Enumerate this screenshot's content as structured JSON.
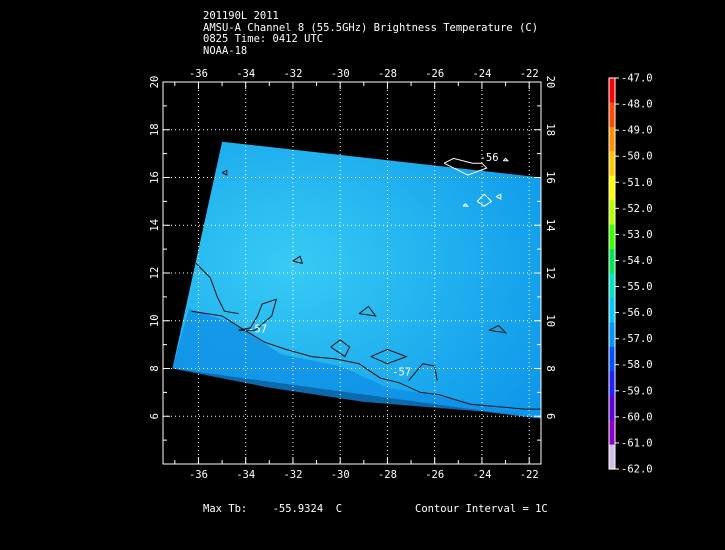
{
  "header": {
    "line1": "201190L 2011",
    "line2": "AMSU-A Channel 8 (55.5GHz) Brightness Temperature (C)",
    "line3": "0825 Time: 0412 UTC",
    "line4": "NOAA-18"
  },
  "footer": {
    "max_label": "Max Tb:",
    "max_value": "-55.9324",
    "max_unit": "C",
    "contour_interval": "Contour Interval = 1C"
  },
  "chart_data": {
    "type": "heatmap",
    "title": "AMSU-A Channel 8 (55.5GHz) Brightness Temperature (C)",
    "xlabel": "",
    "ylabel": "",
    "xlim": [
      -37.5,
      -21.5
    ],
    "ylim": [
      4,
      20
    ],
    "x_ticks": [
      -36,
      -34,
      -32,
      -30,
      -28,
      -26,
      -24,
      -22
    ],
    "y_ticks": [
      6,
      8,
      10,
      12,
      14,
      16,
      18,
      20
    ],
    "swath_corners_lonlat": [
      [
        -35,
        17.5
      ],
      [
        -21.5,
        16.0
      ],
      [
        -21.5,
        5.9
      ],
      [
        -37.1,
        8.0
      ]
    ],
    "dominant_value_C": -56.3,
    "max_tb_C": -55.9324,
    "contour_interval_C": 1,
    "contour_labels": [
      {
        "text": "-57",
        "lon": -33.9,
        "lat": 9.5
      },
      {
        "text": "-57",
        "lon": -27.8,
        "lat": 7.7
      },
      {
        "text": "-56",
        "lon": -24.1,
        "lat": 16.7
      }
    ],
    "colorbar": {
      "min": -62.0,
      "max": -47.0,
      "ticks": [
        "-47.0",
        "-48.0",
        "-49.0",
        "-50.0",
        "-51.0",
        "-52.0",
        "-53.0",
        "-54.0",
        "-55.0",
        "-56.0",
        "-57.0",
        "-58.0",
        "-59.0",
        "-60.0",
        "-61.0",
        "-62.0"
      ],
      "colors": [
        "#ff0000",
        "#ff4a00",
        "#ff9000",
        "#ffc800",
        "#ffff00",
        "#b4ff00",
        "#3cff00",
        "#00e850",
        "#00e2c8",
        "#00c8ff",
        "#0096ff",
        "#0050ff",
        "#2020ff",
        "#5c00dc",
        "#8c00c8",
        "#d2bce8"
      ]
    }
  }
}
